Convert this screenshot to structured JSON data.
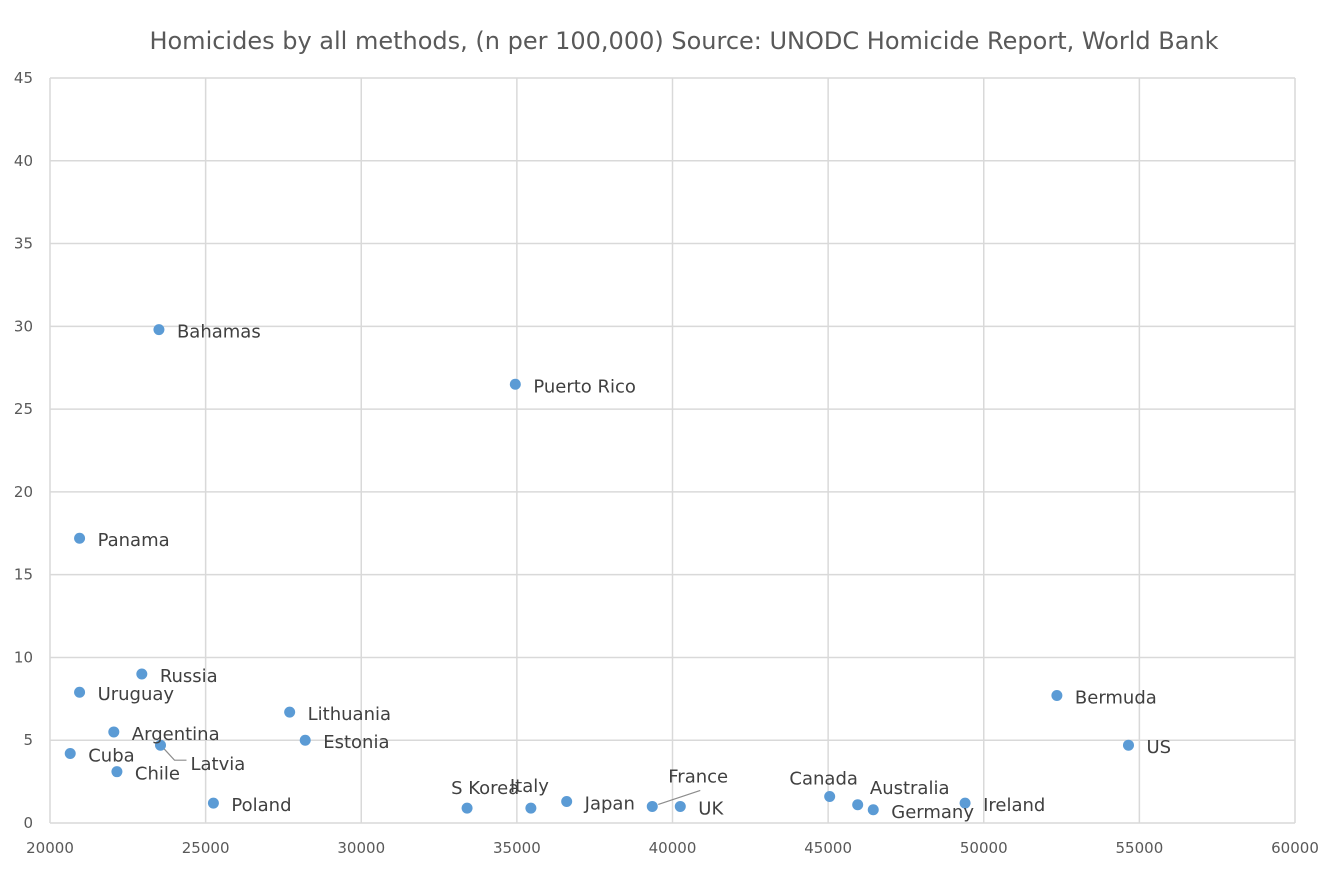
{
  "chart_data": {
    "type": "scatter",
    "title": "Homicides by all methods, (n per 100,000) Source: UNODC Homicide Report, World Bank",
    "xlabel": "",
    "ylabel": "",
    "xlim": [
      20000,
      60000
    ],
    "ylim": [
      0,
      45
    ],
    "x_ticks": [
      "20000",
      "25000",
      "30000",
      "35000",
      "40000",
      "45000",
      "50000",
      "55000",
      "60000"
    ],
    "y_ticks": [
      "0",
      "5",
      "10",
      "15",
      "20",
      "25",
      "30",
      "35",
      "40",
      "45"
    ],
    "grid": true,
    "marker_color": "#5b9bd5",
    "points": [
      {
        "label": "Bahamas",
        "x": 23500,
        "y": 29.8
      },
      {
        "label": "Puerto Rico",
        "x": 34950,
        "y": 26.5
      },
      {
        "label": "Panama",
        "x": 20950,
        "y": 17.2
      },
      {
        "label": "Russia",
        "x": 22950,
        "y": 9.0
      },
      {
        "label": "Uruguay",
        "x": 20950,
        "y": 7.9
      },
      {
        "label": "Argentina",
        "x": 22050,
        "y": 5.5
      },
      {
        "label": "Cuba",
        "x": 20650,
        "y": 4.2
      },
      {
        "label": "Chile",
        "x": 22150,
        "y": 3.1
      },
      {
        "label": "Latvia",
        "x": 23550,
        "y": 4.7
      },
      {
        "label": "Poland",
        "x": 25250,
        "y": 1.2
      },
      {
        "label": "Lithuania",
        "x": 27700,
        "y": 6.7
      },
      {
        "label": "Estonia",
        "x": 28200,
        "y": 5.0
      },
      {
        "label": "S Korea",
        "x": 33400,
        "y": 0.9
      },
      {
        "label": "Italy",
        "x": 35450,
        "y": 0.9
      },
      {
        "label": "Japan",
        "x": 36600,
        "y": 1.3
      },
      {
        "label": "France",
        "x": 39350,
        "y": 1.0
      },
      {
        "label": "UK",
        "x": 40250,
        "y": 1.0
      },
      {
        "label": "Canada",
        "x": 45050,
        "y": 1.6
      },
      {
        "label": "Australia",
        "x": 45950,
        "y": 1.1
      },
      {
        "label": "Germany",
        "x": 46450,
        "y": 0.8
      },
      {
        "label": "Ireland",
        "x": 49400,
        "y": 1.2
      },
      {
        "label": "Bermuda",
        "x": 52350,
        "y": 7.7
      },
      {
        "label": "US",
        "x": 54650,
        "y": 4.7
      }
    ]
  }
}
